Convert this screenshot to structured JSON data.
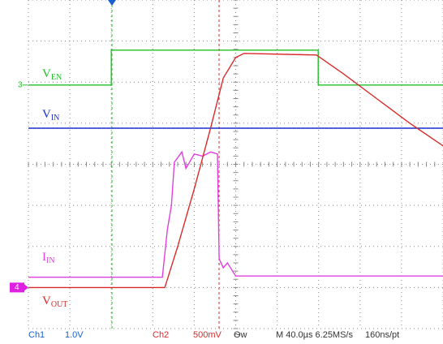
{
  "chart_data": {
    "type": "line",
    "xlim": [
      0,
      10
    ],
    "ylim": [
      0,
      8
    ],
    "xticks": [
      0,
      1,
      2,
      3,
      4,
      5,
      6,
      7,
      8,
      9,
      10
    ],
    "yticks": [
      0,
      1,
      2,
      3,
      4,
      5,
      6,
      7,
      8
    ],
    "grid": true,
    "series": [
      {
        "name": "V",
        "subscript": "EN",
        "color": "#22c02a",
        "x": [
          0,
          2.0,
          2.0,
          6.99,
          6.99,
          10
        ],
        "values": [
          5.93,
          5.93,
          6.78,
          6.78,
          5.93,
          5.93
        ]
      },
      {
        "name": "V",
        "subscript": "IN",
        "color": "#1a2fd0",
        "x": [
          0,
          10
        ],
        "values": [
          4.88,
          4.88
        ]
      },
      {
        "name": "I",
        "subscript": "IN",
        "color": "#e040e0",
        "x": [
          0,
          3.23,
          3.35,
          3.45,
          3.52,
          3.7,
          3.8,
          4.0,
          4.2,
          4.4,
          4.56,
          4.6,
          4.7,
          4.8,
          5.0,
          10
        ],
        "values": [
          1.25,
          1.25,
          2.4,
          3.0,
          4.05,
          4.3,
          3.9,
          4.25,
          4.2,
          4.3,
          4.25,
          1.7,
          1.48,
          1.6,
          1.28,
          1.28
        ]
      },
      {
        "name": "V",
        "subscript": "OUT",
        "color": "#d92a2a",
        "x": [
          0,
          3.29,
          3.6,
          4.0,
          4.4,
          4.7,
          5.0,
          5.2,
          6.95,
          7.6,
          8.4,
          9.2,
          10
        ],
        "values": [
          1.0,
          1.0,
          2.0,
          3.4,
          4.9,
          6.1,
          6.6,
          6.7,
          6.66,
          6.2,
          5.6,
          5.0,
          4.45
        ]
      }
    ],
    "channel_markers": [
      "3",
      "4"
    ],
    "readout": [
      "Ch1",
      "1.0V",
      "Ch2",
      "500mV",
      "Ѳw",
      "M 40.0µs 6.25MS/s",
      "160ns/pt"
    ]
  }
}
